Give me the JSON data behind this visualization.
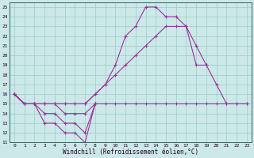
{
  "xlabel": "Windchill (Refroidissement éolien,°C)",
  "background_color": "#cce8e8",
  "grid_color": "#99cccc",
  "line_color": "#993399",
  "x_hours": [
    0,
    1,
    2,
    3,
    4,
    5,
    6,
    7,
    8,
    9,
    10,
    11,
    12,
    13,
    14,
    15,
    16,
    17,
    18,
    19,
    20,
    21,
    22,
    23
  ],
  "ylim": [
    11,
    25.5
  ],
  "yticks": [
    11,
    12,
    13,
    14,
    15,
    16,
    17,
    18,
    19,
    20,
    21,
    22,
    23,
    24,
    25
  ],
  "xticks": [
    0,
    1,
    2,
    3,
    4,
    5,
    6,
    7,
    8,
    9,
    10,
    11,
    12,
    13,
    14,
    15,
    16,
    17,
    18,
    19,
    20,
    21,
    22,
    23
  ],
  "series": [
    [
      16,
      15,
      15,
      13,
      13,
      12,
      12,
      11,
      15,
      null,
      null,
      null,
      null,
      null,
      null,
      null,
      null,
      null,
      null,
      null,
      null,
      null,
      null,
      null
    ],
    [
      16,
      15,
      15,
      14,
      14,
      13,
      13,
      12,
      15,
      null,
      null,
      null,
      null,
      null,
      null,
      null,
      null,
      null,
      null,
      null,
      null,
      null,
      null,
      null
    ],
    [
      16,
      15,
      15,
      15,
      15,
      14,
      14,
      14,
      15,
      15,
      15,
      15,
      15,
      15,
      15,
      15,
      15,
      15,
      15,
      15,
      15,
      15,
      15,
      15
    ],
    [
      16,
      15,
      15,
      15,
      15,
      15,
      15,
      15,
      16,
      17,
      18,
      19,
      20,
      21,
      22,
      23,
      23,
      23,
      19,
      19,
      17,
      15,
      15,
      15
    ],
    [
      16,
      15,
      15,
      15,
      15,
      15,
      15,
      15,
      16,
      17,
      19,
      22,
      23,
      25,
      25,
      24,
      24,
      23,
      21,
      19,
      null,
      null,
      null,
      null
    ]
  ]
}
